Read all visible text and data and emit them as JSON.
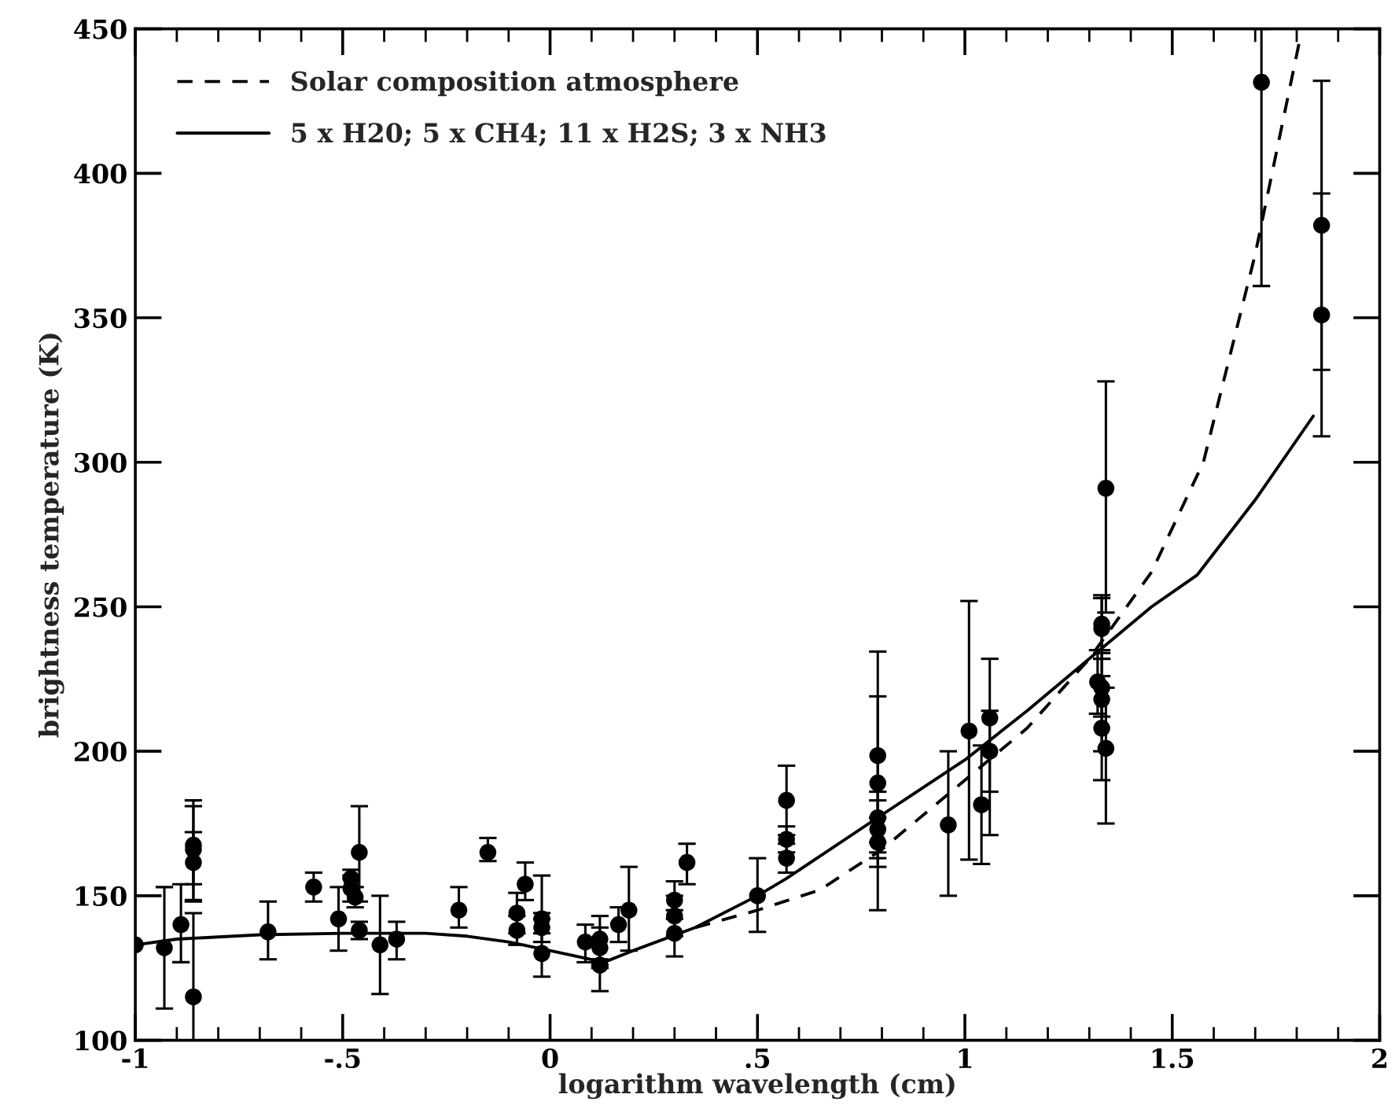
{
  "chart_data": {
    "type": "scatter",
    "xlabel": "logarithm wavelength (cm)",
    "ylabel": "brightness temperature (K)",
    "xlim": [
      -1,
      2
    ],
    "ylim": [
      100,
      450
    ],
    "xticks": [
      -1,
      {
        "value": -0.5,
        "label": "-.5"
      },
      0,
      {
        "value": 0.5,
        "label": ".5"
      },
      1,
      1.5,
      2
    ],
    "yticks": [
      100,
      150,
      200,
      250,
      300,
      350,
      400,
      450
    ],
    "legend": "top left",
    "grid": false,
    "series": [
      {
        "name": "Solar composition atmosphere",
        "type": "line",
        "line_style": "dashed",
        "marker": "none",
        "color": "#000000",
        "x": [
          0.35,
          0.5,
          0.65,
          0.8,
          1.0,
          1.15,
          1.3,
          1.45,
          1.575,
          1.7,
          1.81
        ],
        "values": [
          139,
          145,
          152,
          166,
          190,
          208,
          232,
          262,
          300,
          372,
          448
        ]
      },
      {
        "name": "5 x H20; 5 x CH4; 11 x H2S; 3 x NH3",
        "type": "line",
        "line_style": "solid",
        "marker": "none",
        "color": "#000000",
        "x": [
          -1,
          -0.9,
          -0.7,
          -0.5,
          -0.3,
          -0.2,
          -0.1,
          0,
          0.13,
          0.2,
          0.35,
          0.5,
          0.57,
          0.8,
          1.0,
          1.15,
          1.3,
          1.45,
          1.56,
          1.7,
          1.84
        ],
        "values": [
          133,
          135,
          136.5,
          137,
          137,
          136,
          134,
          131,
          127,
          131,
          139,
          150,
          156,
          178,
          197,
          214,
          232,
          250,
          261,
          287,
          316
        ]
      },
      {
        "marker": "circle",
        "color": "#000000",
        "x": [
          -1.0,
          -0.93,
          -0.89,
          -0.86,
          -0.86,
          -0.86,
          -0.86,
          -0.68,
          -0.57,
          -0.51,
          -0.48,
          -0.48,
          -0.47,
          -0.46,
          -0.46,
          -0.41,
          -0.37,
          -0.22,
          -0.15,
          -0.08,
          -0.08,
          -0.06,
          -0.02,
          -0.02,
          -0.02,
          0.085,
          0.12,
          0.12,
          0.12,
          0.165,
          0.19,
          0.3,
          0.3,
          0.3,
          0.33,
          0.5,
          0.57,
          0.57,
          0.57,
          0.79,
          0.79,
          0.79,
          0.79,
          0.79,
          0.96,
          1.01,
          1.04,
          1.06,
          1.06,
          1.32,
          1.33,
          1.33,
          1.33,
          1.33,
          1.33,
          1.34,
          1.34,
          1.715,
          1.86,
          1.86
        ],
        "values": [
          133,
          132,
          140,
          167.5,
          166,
          161.5,
          115,
          137.5,
          153,
          142,
          156,
          152.5,
          149.5,
          138,
          165,
          133,
          135,
          145,
          165,
          138,
          144,
          154,
          142,
          139,
          130,
          134,
          132,
          126,
          135,
          140,
          145,
          148.5,
          143,
          137,
          161.5,
          150,
          169.5,
          163,
          183,
          198.5,
          189,
          177,
          173,
          168.5,
          174.5,
          207,
          181.5,
          200,
          211.5,
          224,
          242.5,
          244,
          222,
          218,
          208,
          201,
          291,
          431.5,
          382,
          351
        ],
        "errors": [
          null,
          [
            111,
            153
          ],
          [
            127,
            154
          ],
          [
            148,
            183
          ],
          [
            148.5,
            181
          ],
          [
            154,
            172
          ],
          [
            100,
            144
          ],
          [
            128,
            148
          ],
          [
            148,
            158
          ],
          [
            131,
            153
          ],
          [
            156,
            159
          ],
          [
            148,
            157
          ],
          [
            146,
            153
          ],
          [
            135,
            141
          ],
          [
            148,
            181
          ],
          [
            116,
            150
          ],
          [
            128,
            141
          ],
          [
            139,
            153
          ],
          [
            162,
            170
          ],
          [
            133,
            143
          ],
          [
            137,
            151
          ],
          [
            148.5,
            161.5
          ],
          [
            142,
            157
          ],
          [
            134,
            144
          ],
          [
            122,
            137
          ],
          [
            127,
            140
          ],
          [
            125,
            139
          ],
          [
            117,
            126
          ],
          [
            128,
            143
          ],
          [
            134,
            146
          ],
          [
            131,
            160
          ],
          [
            142,
            155
          ],
          [
            136,
            150
          ],
          [
            129,
            145
          ],
          [
            154,
            168
          ],
          [
            137.5,
            163
          ],
          [
            165,
            174
          ],
          [
            158,
            168
          ],
          [
            171,
            195
          ],
          [
            145,
            234.5
          ],
          [
            165,
            219
          ],
          [
            177,
            186
          ],
          [
            163,
            183
          ],
          [
            160,
            168.5
          ],
          [
            150,
            200
          ],
          [
            162.5,
            252
          ],
          [
            161,
            202
          ],
          [
            186,
            214
          ],
          [
            171,
            232
          ],
          [
            213,
            235
          ],
          [
            232,
            253
          ],
          [
            235,
            254
          ],
          [
            212,
            232
          ],
          [
            200,
            234
          ],
          [
            190,
            226
          ],
          [
            175,
            222
          ],
          [
            248,
            328
          ],
          [
            361,
            450
          ],
          [
            309,
            432
          ],
          [
            332,
            393
          ]
        ]
      }
    ]
  }
}
